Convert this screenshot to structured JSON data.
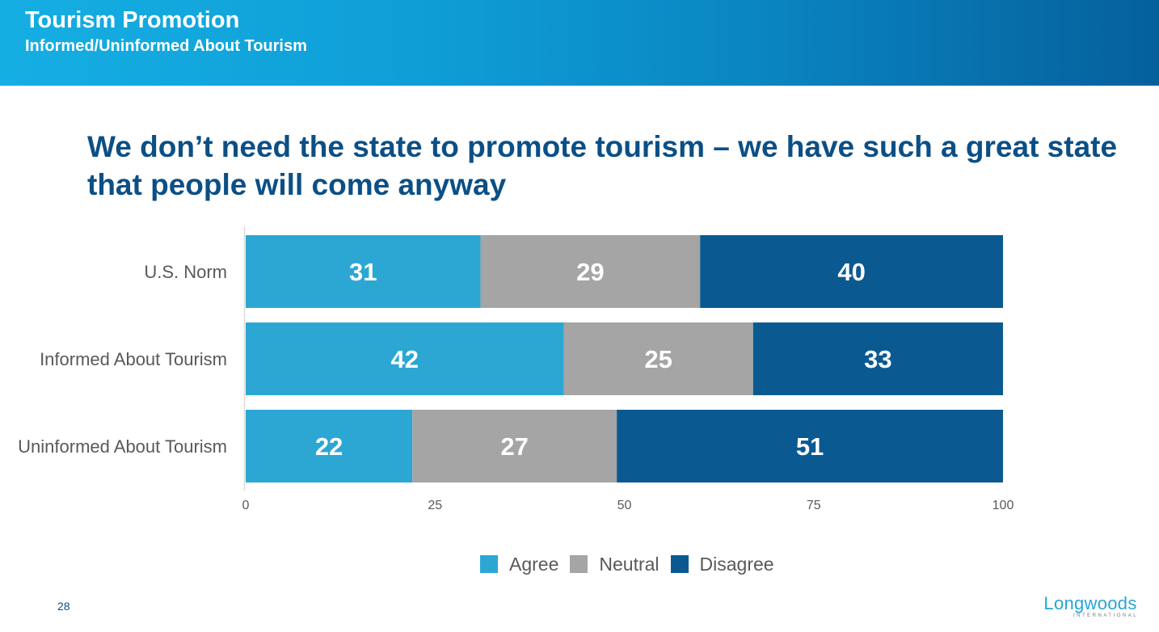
{
  "header": {
    "title": "Tourism Promotion",
    "subtitle": "Informed/Uninformed About Tourism"
  },
  "slide": {
    "title": "We don’t need the state to promote tourism – we have such a great state that people will come anyway",
    "page_number": "28"
  },
  "logo": {
    "name": "Longwoods",
    "tagline": "INTERNATIONAL"
  },
  "chart_data": {
    "type": "bar",
    "orientation": "horizontal",
    "stacked": true,
    "categories": [
      "U.S. Norm",
      "Informed About Tourism",
      "Uninformed About Tourism"
    ],
    "series": [
      {
        "name": "Agree",
        "values": [
          31,
          42,
          22
        ],
        "color": "#2ca7d3"
      },
      {
        "name": "Neutral",
        "values": [
          29,
          25,
          27
        ],
        "color": "#a5a5a5"
      },
      {
        "name": "Disagree",
        "values": [
          40,
          33,
          51
        ],
        "color": "#0a5a91"
      }
    ],
    "xlim": [
      0,
      100
    ],
    "xticks": [
      "0",
      "25",
      "50",
      "75",
      "100"
    ],
    "grid": false,
    "legend_position": "bottom"
  }
}
